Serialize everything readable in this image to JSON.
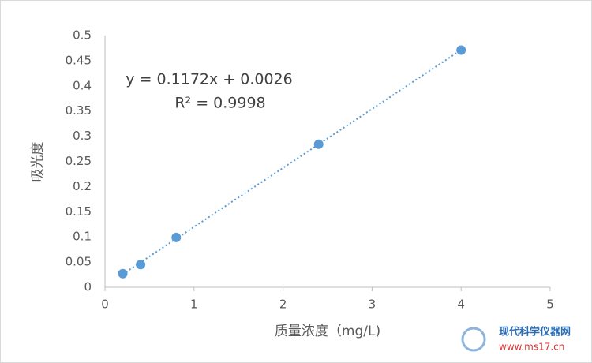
{
  "chart_data": {
    "type": "scatter",
    "x_label": "质量浓度（mg/L)",
    "y_label": "吸光度",
    "series": [
      {
        "name": "吸光度",
        "color": "#5b9bd5",
        "x": [
          0.2,
          0.4,
          0.8,
          2.4,
          4.0
        ],
        "values": [
          0.027,
          0.045,
          0.099,
          0.284,
          0.471
        ]
      }
    ],
    "trendline": {
      "slope": 0.1172,
      "intercept": 0.0026,
      "color": "#5b9bd5"
    },
    "annotations": [
      "y = 0.1172x + 0.0026",
      "R² = 0.9998"
    ],
    "xlim": [
      0,
      5
    ],
    "xticks": [
      0,
      1,
      2,
      3,
      4,
      5
    ],
    "ylim": [
      0,
      0.5
    ],
    "yticks": [
      0,
      0.05,
      0.1,
      0.15,
      0.2,
      0.25,
      0.3,
      0.35,
      0.4,
      0.45,
      0.5
    ],
    "grid": false
  },
  "watermark": {
    "name": "现代科学仪器网",
    "url": "www.ms17.cn"
  }
}
